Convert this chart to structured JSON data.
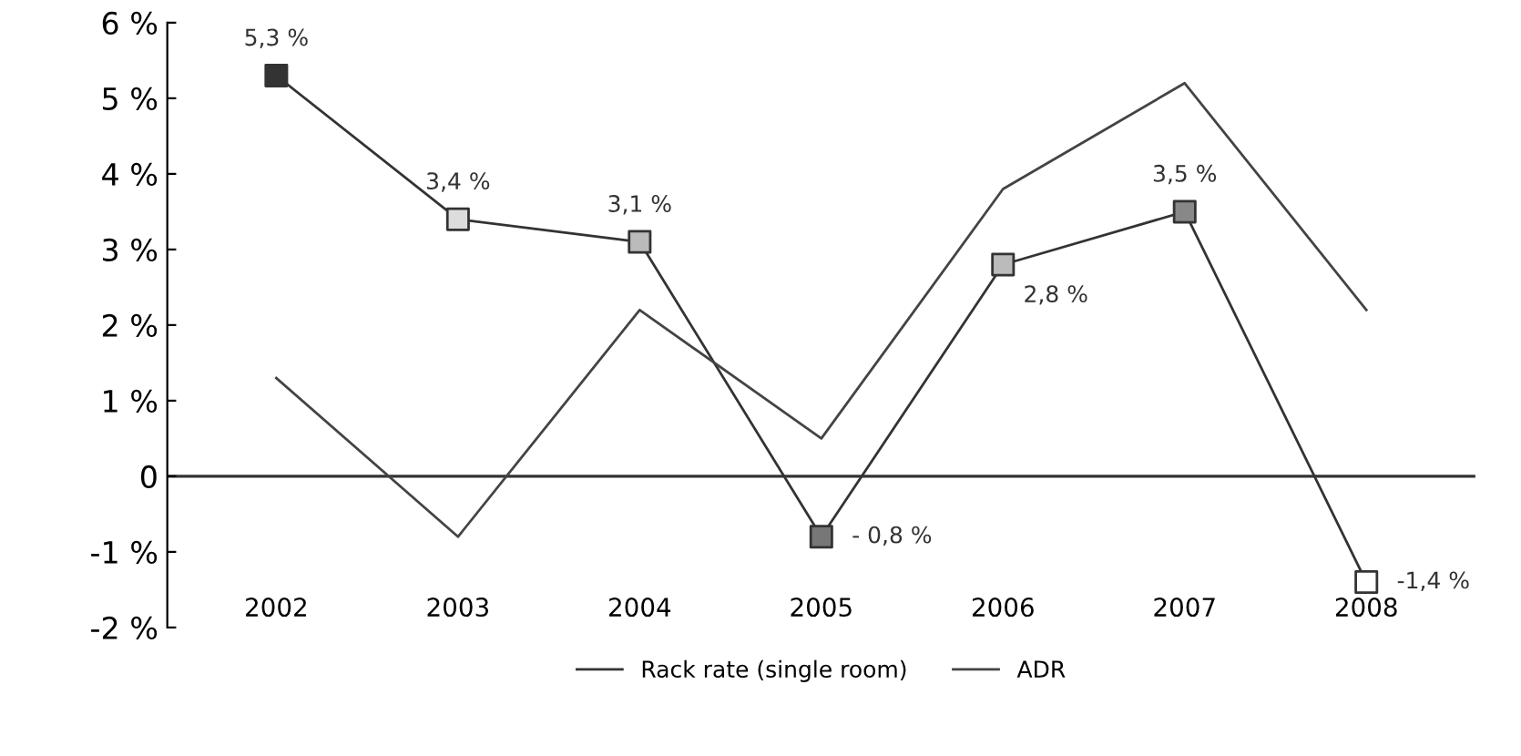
{
  "chart_data": {
    "type": "line",
    "categories": [
      "2002",
      "2003",
      "2004",
      "2005",
      "2006",
      "2007",
      "2008"
    ],
    "series": [
      {
        "name": "Rack rate (single room)",
        "color": "#333333",
        "values": [
          5.3,
          3.4,
          3.1,
          -0.8,
          2.8,
          3.5,
          -1.4
        ],
        "marker": "square",
        "colors": [
          "#333333",
          "#dddddd",
          "#bbbbbb",
          "#777777",
          "#bbbbbb",
          "#888888",
          "#ffffff"
        ],
        "value_labels": [
          "5,3 %",
          "3,4 %",
          "3,1 %",
          "- 0,8 %",
          "2,8 %",
          "3,5 %",
          "-1,4 %"
        ]
      },
      {
        "name": "ADR",
        "color": "#444444",
        "values": [
          1.3,
          -0.8,
          2.2,
          0.5,
          3.8,
          5.2,
          2.2
        ]
      }
    ],
    "ylim": [
      -2,
      6
    ],
    "yticks": [
      {
        "value": -2,
        "label": "-2 %"
      },
      {
        "value": -1,
        "label": "-1 %"
      },
      0,
      {
        "value": 1,
        "label": "1 %"
      },
      {
        "value": 2,
        "label": "2 %"
      },
      {
        "value": 3,
        "label": "3 %"
      },
      {
        "value": 4,
        "label": "4 %"
      },
      {
        "value": 5,
        "label": "5 %"
      },
      {
        "value": 6,
        "label": "6 %"
      }
    ],
    "ref_lines": [
      {
        "axis": "y",
        "value": 0,
        "color": "#333333"
      }
    ],
    "grid": false,
    "legend": "bottom"
  }
}
